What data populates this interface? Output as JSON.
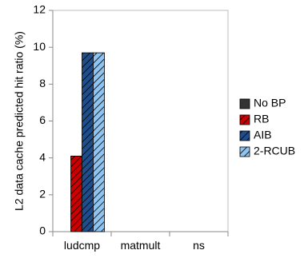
{
  "chart_data": {
    "type": "bar",
    "categories": [
      "ludcmp",
      "matmult",
      "ns"
    ],
    "series": [
      {
        "name": "No BP",
        "values": [
          0,
          0,
          0
        ],
        "color": "#333333",
        "pattern": "solid"
      },
      {
        "name": "RB",
        "values": [
          4.1,
          0,
          0
        ],
        "color": "#cc0000",
        "pattern": "diagonal-hatch"
      },
      {
        "name": "AIB",
        "values": [
          9.7,
          0,
          0
        ],
        "color": "#1f4e8c",
        "pattern": "diagonal-hatch"
      },
      {
        "name": "2-RCUB",
        "values": [
          9.7,
          0,
          0
        ],
        "color": "#8fc3f0",
        "pattern": "diagonal-hatch"
      }
    ],
    "ylabel": "L2 data cache predicted hit ratio (%)",
    "xlabel": "",
    "ylim": [
      0,
      12
    ],
    "yticks": [
      0,
      2,
      4,
      6,
      8,
      10,
      12
    ],
    "grid": false,
    "legend_position": "right"
  }
}
